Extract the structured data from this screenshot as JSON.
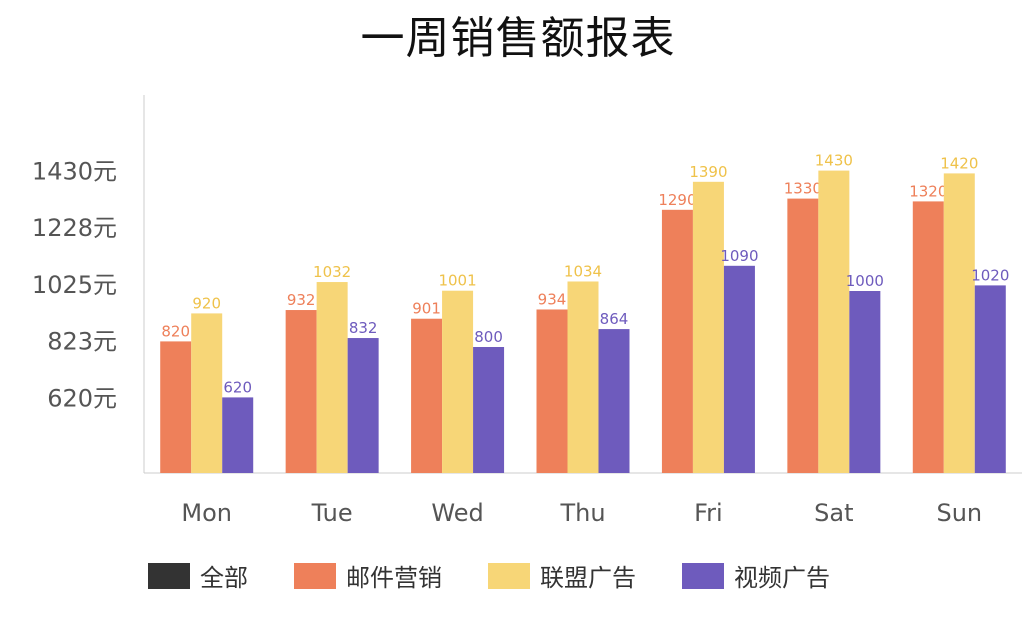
{
  "chart_data": {
    "type": "bar",
    "title": "一周销售额报表",
    "categories": [
      "Mon",
      "Tue",
      "Wed",
      "Thu",
      "Fri",
      "Sat",
      "Sun"
    ],
    "yticks": [
      "620元",
      "823元",
      "1025元",
      "1228元",
      "1430元"
    ],
    "ytick_values": [
      620,
      823,
      1025,
      1228,
      1430
    ],
    "ylim": [
      350,
      1700
    ],
    "grid": false,
    "legend_position": "bottom",
    "legend": [
      "全部",
      "邮件营销",
      "联盟广告",
      "视频广告"
    ],
    "series": [
      {
        "name": "邮件营销",
        "color": "#ee805a",
        "values": [
          820,
          932,
          901,
          934,
          1290,
          1330,
          1320
        ]
      },
      {
        "name": "联盟广告",
        "color": "#f7d677",
        "values": [
          920,
          1032,
          1001,
          1034,
          1390,
          1430,
          1420
        ]
      },
      {
        "name": "视频广告",
        "color": "#6e5bbd",
        "values": [
          620,
          832,
          800,
          864,
          1090,
          1000,
          1020
        ]
      }
    ],
    "legend_colors": [
      "#333333",
      "#ee805a",
      "#f7d677",
      "#6e5bbd"
    ]
  }
}
